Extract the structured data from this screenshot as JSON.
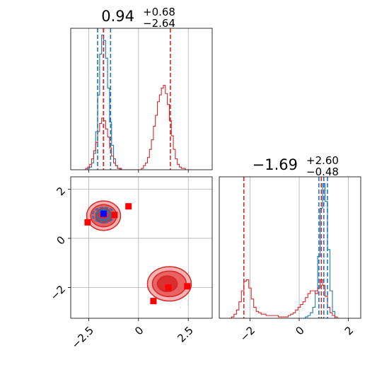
{
  "chart_data": {
    "type": "corner",
    "colors": {
      "red": "#d62728",
      "blue": "#1f77b4",
      "blue_marker": "#0000ff",
      "red_marker": "#ff0000",
      "grid": "#b0b0b0",
      "fill_light": "#f4a4a4",
      "fill_mid": "#e85454"
    },
    "titles": [
      {
        "value": "0.94",
        "plus": "+0.68",
        "minus": "−2.64"
      },
      {
        "value": "−1.69",
        "plus": "+2.60",
        "minus": "−0.48"
      }
    ],
    "panels": {
      "hist_x": {
        "xlim": [
          -3.4,
          3.7
        ],
        "ticks": [
          -2.5,
          0.0,
          2.5
        ],
        "red_lines": [
          -1.76,
          1.6
        ],
        "blue_lines": [
          -2.05,
          -1.75,
          -1.4
        ],
        "red_hist": {
          "centers": [
            -2.7,
            -2.6,
            -2.5,
            -2.4,
            -2.3,
            -2.2,
            -2.1,
            -2.0,
            -1.9,
            -1.8,
            -1.7,
            -1.6,
            -1.5,
            -1.4,
            -1.3,
            -1.2,
            -1.1,
            -1.0,
            -0.9,
            -0.8,
            -0.7,
            -0.6,
            -0.5,
            -0.4,
            -0.3,
            -0.2,
            -0.1,
            0.0,
            0.1,
            0.2,
            0.3,
            0.4,
            0.5,
            0.6,
            0.7,
            0.8,
            0.9,
            1.0,
            1.1,
            1.2,
            1.3,
            1.4,
            1.5,
            1.6,
            1.7,
            1.8,
            1.9,
            2.0,
            2.1,
            2.2,
            2.3,
            2.4,
            2.5,
            2.6
          ],
          "values": [
            0,
            0.01,
            0.02,
            0.04,
            0.08,
            0.14,
            0.2,
            0.28,
            0.34,
            0.38,
            0.36,
            0.3,
            0.24,
            0.16,
            0.1,
            0.05,
            0.03,
            0.01,
            0.01,
            0,
            0,
            0,
            0,
            0,
            0,
            0,
            0,
            0,
            0,
            0.01,
            0.03,
            0.05,
            0.09,
            0.15,
            0.22,
            0.32,
            0.4,
            0.5,
            0.55,
            0.6,
            0.62,
            0.56,
            0.48,
            0.36,
            0.25,
            0.15,
            0.08,
            0.04,
            0.02,
            0.01,
            0.01,
            0,
            0,
            0
          ]
        },
        "blue_hist": {
          "centers": [
            -2.6,
            -2.5,
            -2.4,
            -2.3,
            -2.2,
            -2.1,
            -2.0,
            -1.9,
            -1.8,
            -1.7,
            -1.6,
            -1.5,
            -1.4,
            -1.3,
            -1.2,
            -1.1,
            -1.0,
            -0.9,
            -0.8
          ],
          "values": [
            0,
            0.01,
            0.02,
            0.05,
            0.12,
            0.28,
            0.55,
            0.85,
            0.99,
            0.95,
            0.82,
            0.6,
            0.35,
            0.18,
            0.08,
            0.03,
            0.01,
            0.005,
            0
          ]
        }
      },
      "scatter": {
        "xlim": [
          -3.4,
          3.7
        ],
        "ylim": [
          -3.25,
          2.5
        ],
        "xticks": [
          -2.5,
          0.0,
          2.5
        ],
        "yticks": [
          -2,
          0,
          2
        ],
        "red_contours": [
          {
            "cx": -1.75,
            "cy": 0.92,
            "rx": 0.85,
            "ry": 0.6
          },
          {
            "cx": -1.75,
            "cy": 0.92,
            "rx": 0.65,
            "ry": 0.45
          },
          {
            "cx": -1.75,
            "cy": 0.92,
            "rx": 0.4,
            "ry": 0.3
          },
          {
            "cx": 1.55,
            "cy": -1.85,
            "rx": 1.1,
            "ry": 0.7
          },
          {
            "cx": 1.55,
            "cy": -1.85,
            "rx": 0.85,
            "ry": 0.52
          },
          {
            "cx": 1.45,
            "cy": -1.85,
            "rx": 0.5,
            "ry": 0.32
          }
        ],
        "blue_contours": [
          {
            "cx": -1.75,
            "cy": 0.95,
            "rx": 0.55,
            "ry": 0.3
          },
          {
            "cx": -1.75,
            "cy": 0.95,
            "rx": 0.35,
            "ry": 0.2
          }
        ],
        "red_markers": [
          [
            -2.55,
            0.65
          ],
          [
            -0.5,
            1.3
          ],
          [
            1.5,
            -2.0
          ],
          [
            2.45,
            -1.95
          ],
          [
            0.75,
            -2.55
          ],
          [
            -1.2,
            0.95
          ]
        ],
        "blue_markers": [
          [
            -1.75,
            1.0
          ]
        ]
      },
      "hist_y": {
        "xlim": [
          -3.25,
          2.5
        ],
        "ticks": [
          -2,
          0,
          2
        ],
        "red_lines": [
          -2.25,
          0.9
        ],
        "blue_lines": [
          0.8,
          1.0,
          1.15
        ],
        "red_hist": {
          "centers": [
            -2.8,
            -2.7,
            -2.6,
            -2.5,
            -2.4,
            -2.3,
            -2.2,
            -2.1,
            -2.0,
            -1.9,
            -1.8,
            -1.7,
            -1.6,
            -1.5,
            -1.4,
            -1.3,
            -1.2,
            -1.1,
            -1.0,
            -0.9,
            -0.8,
            -0.7,
            -0.6,
            -0.5,
            -0.4,
            -0.3,
            -0.2,
            -0.1,
            0.0,
            0.1,
            0.2,
            0.3,
            0.4,
            0.5,
            0.6,
            0.7,
            0.8,
            0.9,
            1.0,
            1.1,
            1.2,
            1.3,
            1.4,
            1.5,
            1.6
          ],
          "values": [
            0,
            0.01,
            0.03,
            0.06,
            0.12,
            0.2,
            0.27,
            0.28,
            0.22,
            0.14,
            0.08,
            0.05,
            0.04,
            0.03,
            0.03,
            0.02,
            0.02,
            0.02,
            0.02,
            0.02,
            0.01,
            0.01,
            0.01,
            0.01,
            0.02,
            0.03,
            0.04,
            0.06,
            0.08,
            0.1,
            0.12,
            0.15,
            0.18,
            0.2,
            0.2,
            0.18,
            0.22,
            0.28,
            0.24,
            0.16,
            0.08,
            0.04,
            0.02,
            0.01,
            0
          ]
        },
        "blue_hist": {
          "centers": [
            0.2,
            0.3,
            0.4,
            0.5,
            0.6,
            0.7,
            0.8,
            0.9,
            1.0,
            1.1,
            1.2,
            1.3,
            1.4,
            1.5
          ],
          "values": [
            0,
            0.01,
            0.02,
            0.04,
            0.08,
            0.2,
            0.45,
            0.8,
            0.98,
            0.85,
            0.5,
            0.2,
            0.05,
            0
          ]
        }
      }
    }
  }
}
